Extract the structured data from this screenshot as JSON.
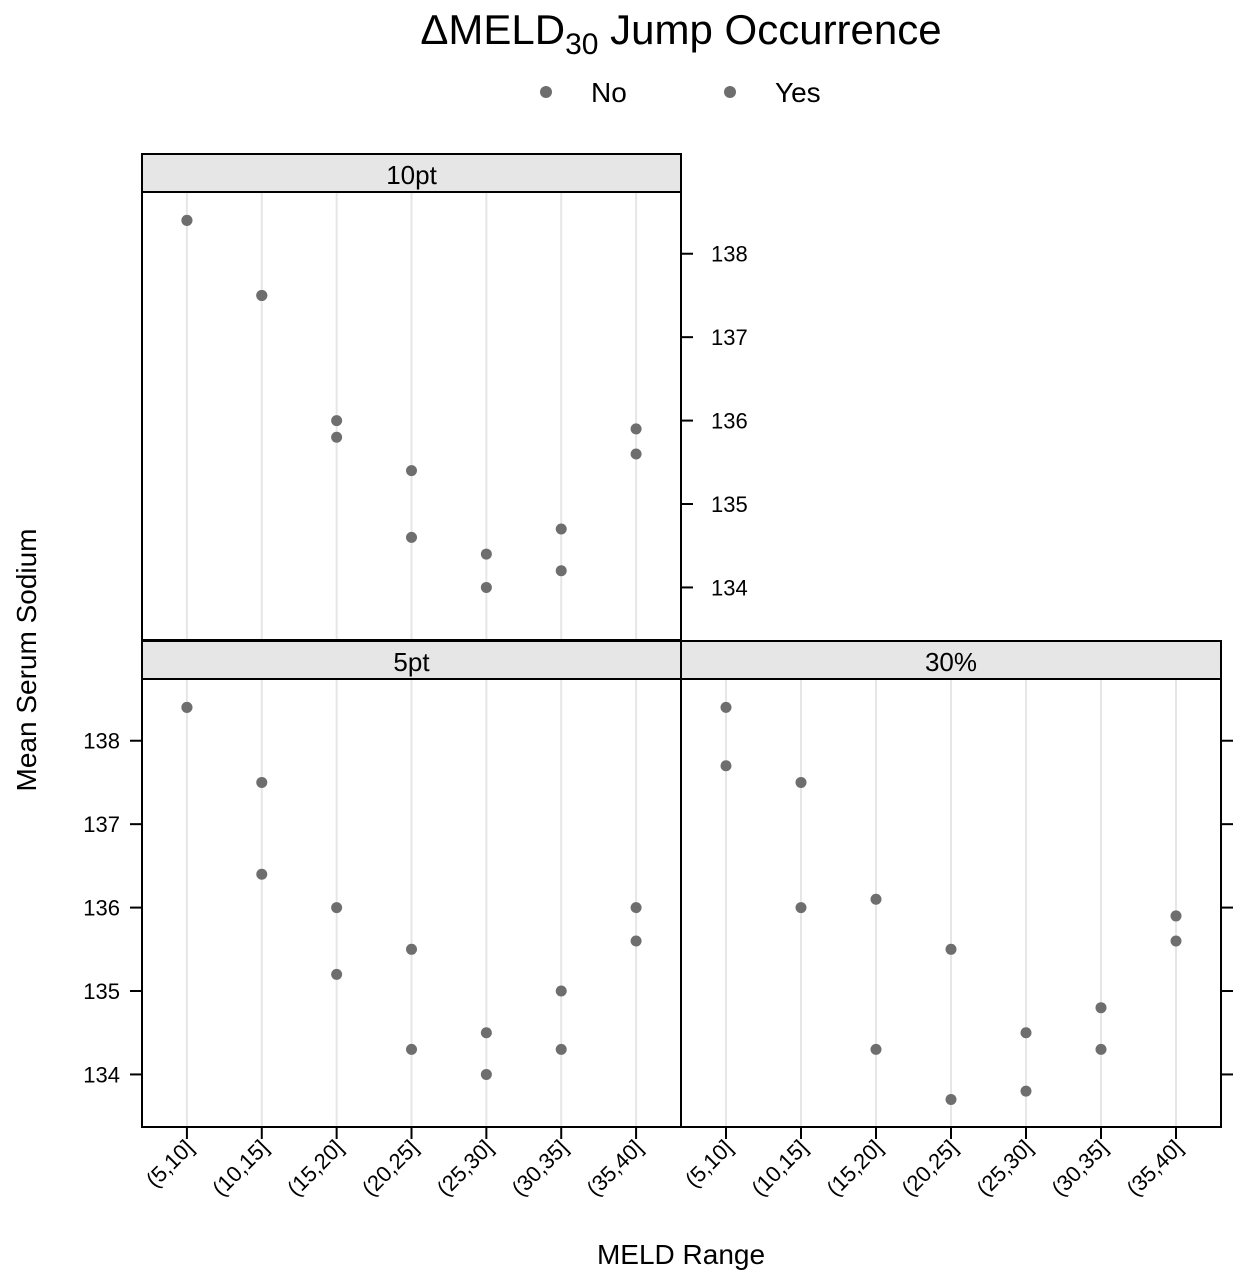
{
  "chart_data": {
    "type": "dot",
    "title": "ΔMELD",
    "title_subscript": "30",
    "title_suffix": " Jump Occurrence",
    "xlabel": "MELD Range",
    "ylabel": "Mean Serum Sodium",
    "categories": [
      "(5,10]",
      "(10,15]",
      "(15,20]",
      "(20,25]",
      "(25,30]",
      "(30,35]",
      "(35,40]"
    ],
    "ylim": [
      133.37,
      138.74
    ],
    "yticks": [
      134,
      135,
      136,
      137,
      138
    ],
    "grid": true,
    "panels": [
      {
        "name": "10pt",
        "series": [
          {
            "name": "No",
            "color": "#6e6e6e",
            "values": [
              138.4,
              137.5,
              136.0,
              135.4,
              134.4,
              134.7,
              135.9
            ]
          },
          {
            "name": "Yes",
            "color": "#6e6e6e",
            "values": [
              138.4,
              137.5,
              135.8,
              134.6,
              134.0,
              134.2,
              135.6
            ]
          }
        ]
      },
      {
        "name": "5pt",
        "series": [
          {
            "name": "No",
            "color": "#6e6e6e",
            "values": [
              138.4,
              137.5,
              136.0,
              135.5,
              134.5,
              135.0,
              136.0
            ]
          },
          {
            "name": "Yes",
            "color": "#6e6e6e",
            "values": [
              138.4,
              136.4,
              135.2,
              134.3,
              134.0,
              134.3,
              135.6
            ]
          }
        ]
      },
      {
        "name": "30%",
        "series": [
          {
            "name": "No",
            "color": "#6e6e6e",
            "values": [
              138.4,
              137.5,
              136.1,
              135.5,
              134.5,
              134.8,
              135.9
            ]
          },
          {
            "name": "Yes",
            "color": "#6e6e6e",
            "values": [
              137.7,
              136.0,
              134.3,
              133.7,
              133.8,
              134.3,
              135.6
            ]
          }
        ]
      }
    ]
  }
}
